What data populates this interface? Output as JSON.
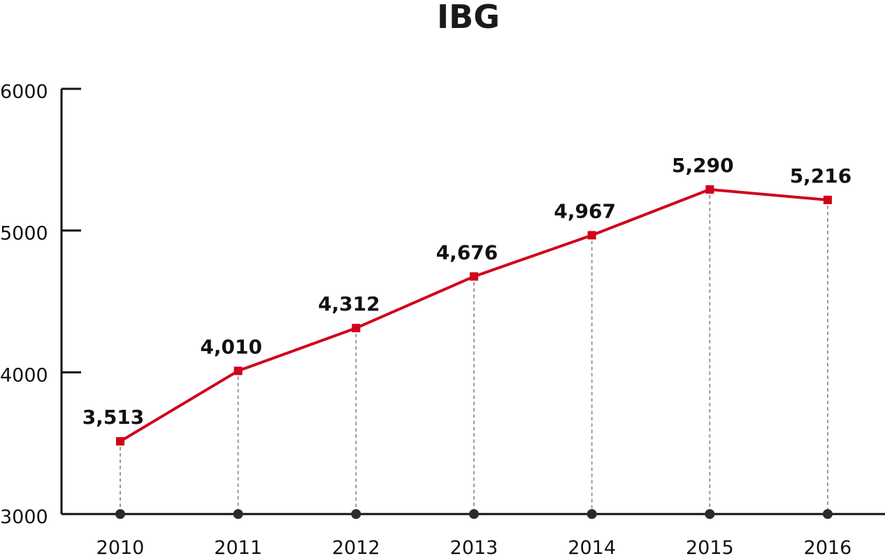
{
  "chart_data": {
    "type": "line",
    "title": "IBG",
    "xlabel": "",
    "ylabel": "",
    "categories": [
      "2010",
      "2011",
      "2012",
      "2013",
      "2014",
      "2015",
      "2016"
    ],
    "series": [
      {
        "values": [
          3513,
          4010,
          4312,
          4676,
          4967,
          5290,
          5216
        ],
        "data_labels": [
          "3,513",
          "4,010",
          "4,312",
          "4,676",
          "4,967",
          "5,290",
          "5,216"
        ],
        "color": "#d0021b"
      }
    ],
    "ylim": [
      3000,
      6000
    ],
    "yticks": [
      {
        "value": 3000,
        "label": "3000"
      },
      {
        "value": 4000,
        "label": "4000"
      },
      {
        "value": 5000,
        "label": "5000"
      },
      {
        "value": 6000,
        "label": "6000"
      }
    ],
    "axis_color": "#111111",
    "dropline_color": "#9a9a9a",
    "grid": false,
    "legend": "none"
  }
}
